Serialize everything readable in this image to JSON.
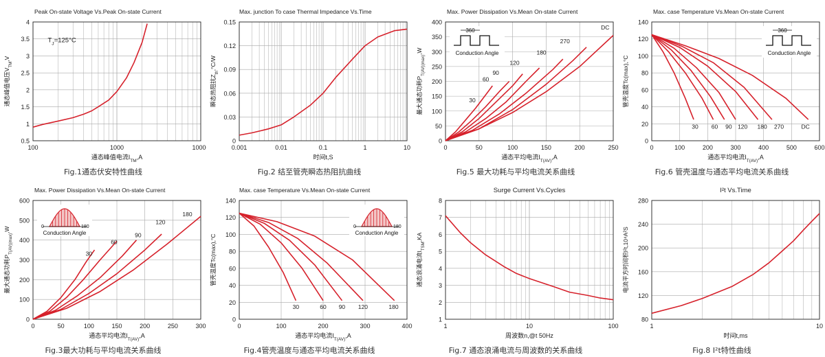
{
  "chart_data": [
    {
      "type": "line",
      "title": "Peak On-state Voltage Vs.Peak On-state Current",
      "xlabel": "通态峰值电流I_TM,A",
      "ylabel": "通态峰值电压V_TM,V",
      "caption": "Fig.1通态伏安特性曲线",
      "xscale": "log",
      "xlim": [
        100,
        10000
      ],
      "ylim": [
        0.5,
        4
      ],
      "xticks": [
        100,
        1000,
        10000
      ],
      "xtick_labels": [
        "100",
        "1000",
        "10000"
      ],
      "yticks": [
        0.5,
        1,
        1.5,
        2,
        2.5,
        3,
        3.5,
        4
      ],
      "ytick_labels": [
        "0.5",
        "1",
        "1.5",
        "2",
        "2.5",
        "3",
        "3.5",
        "4"
      ],
      "annotations": [
        {
          "text": "T_J=125°C",
          "x": 150,
          "y": 3.4
        }
      ],
      "series": [
        {
          "x": [
            100,
            130,
            200,
            300,
            400,
            500,
            600,
            800,
            1000,
            1300,
            1600,
            2000,
            2300
          ],
          "y": [
            0.9,
            0.98,
            1.08,
            1.18,
            1.28,
            1.38,
            1.5,
            1.7,
            1.95,
            2.35,
            2.8,
            3.4,
            3.95
          ]
        }
      ]
    },
    {
      "type": "line",
      "title": "Max. junction To case Thermal Impedance Vs.Time",
      "xlabel": "时间t,S",
      "ylabel": "瞬态热阻抗Z_th,°C/W",
      "caption": "Fig.2 结至管壳瞬态热阻抗曲线",
      "xscale": "log",
      "xlim": [
        0.001,
        10
      ],
      "ylim": [
        0,
        0.15
      ],
      "xticks": [
        0.001,
        0.01,
        0.1,
        1,
        10
      ],
      "xtick_labels": [
        "0.001",
        "0.01",
        "0.1",
        "1",
        "10"
      ],
      "yticks": [
        0,
        0.03,
        0.06,
        0.09,
        0.12,
        0.15
      ],
      "ytick_labels": [
        "0",
        "0.03",
        "0.06",
        "0.09",
        "0.12",
        "0.15"
      ],
      "series": [
        {
          "x": [
            0.001,
            0.002,
            0.005,
            0.01,
            0.02,
            0.05,
            0.1,
            0.2,
            0.5,
            1,
            2,
            5,
            10
          ],
          "y": [
            0.007,
            0.01,
            0.015,
            0.02,
            0.03,
            0.045,
            0.06,
            0.08,
            0.103,
            0.12,
            0.131,
            0.139,
            0.141
          ]
        }
      ]
    },
    {
      "type": "line",
      "title": "Max. Power Dissipation Vs.Mean On-state Current",
      "xlabel": "通态平均电流I_T(AV),A",
      "ylabel": "最大通态功耗P_T(AV)(max),W",
      "caption": "Fig.5 最大功耗与平均电流关系曲线",
      "xlim": [
        0,
        250
      ],
      "ylim": [
        0,
        400
      ],
      "xticks": [
        0,
        50,
        100,
        150,
        200,
        250
      ],
      "xtick_labels": [
        "0",
        "50",
        "100",
        "150",
        "200",
        "250"
      ],
      "yticks": [
        0,
        50,
        100,
        150,
        200,
        250,
        300,
        350,
        400
      ],
      "ytick_labels": [
        "0",
        "50",
        "100",
        "150",
        "200",
        "250",
        "300",
        "350",
        "400"
      ],
      "inset": {
        "kind": "square",
        "label": "360",
        "sub": "Conduction Angle",
        "corner": "top-left"
      },
      "series": [
        {
          "name": "30",
          "x": [
            0,
            15,
            30,
            45,
            60,
            70
          ],
          "y": [
            0,
            30,
            70,
            110,
            155,
            185
          ],
          "label_at": [
            40,
            130
          ]
        },
        {
          "name": "60",
          "x": [
            0,
            20,
            40,
            60,
            80,
            95
          ],
          "y": [
            0,
            30,
            70,
            115,
            165,
            200
          ],
          "label_at": [
            60,
            200
          ]
        },
        {
          "name": "90",
          "x": [
            0,
            25,
            50,
            75,
            100,
            115
          ],
          "y": [
            0,
            30,
            75,
            130,
            185,
            225
          ],
          "label_at": [
            75,
            222
          ]
        },
        {
          "name": "120",
          "x": [
            0,
            30,
            60,
            90,
            120,
            140
          ],
          "y": [
            0,
            30,
            75,
            130,
            200,
            245
          ],
          "label_at": [
            103,
            255
          ]
        },
        {
          "name": "180",
          "x": [
            0,
            40,
            80,
            120,
            160,
            175
          ],
          "y": [
            0,
            35,
            90,
            160,
            240,
            275
          ],
          "label_at": [
            143,
            290
          ]
        },
        {
          "name": "270",
          "x": [
            0,
            50,
            100,
            150,
            190,
            210
          ],
          "y": [
            0,
            40,
            105,
            190,
            270,
            315
          ],
          "label_at": [
            178,
            328
          ]
        },
        {
          "name": "DC",
          "x": [
            0,
            50,
            100,
            150,
            200,
            250
          ],
          "y": [
            0,
            40,
            95,
            165,
            250,
            355
          ],
          "label_at": [
            238,
            375
          ]
        }
      ]
    },
    {
      "type": "line",
      "title": "Max. case Temperature Vs.Mean On-state Current",
      "xlabel": "通态平均电流I_T(AV),A",
      "ylabel": "管壳温度Tc(max),°C",
      "caption": "Fig.6 管壳温度与通态平均电流关系曲线",
      "xlim": [
        0,
        600
      ],
      "ylim": [
        0,
        140
      ],
      "xticks": [
        0,
        100,
        200,
        300,
        400,
        500,
        600
      ],
      "xtick_labels": [
        "0",
        "100",
        "200",
        "300",
        "400",
        "500",
        "600"
      ],
      "yticks": [
        0,
        20,
        40,
        60,
        80,
        100,
        120,
        140
      ],
      "ytick_labels": [
        "0",
        "20",
        "40",
        "60",
        "80",
        "100",
        "120",
        "140"
      ],
      "inset": {
        "kind": "square",
        "label": "360",
        "sub": "Conduction Angle",
        "corner": "top-right"
      },
      "series": [
        {
          "name": "30",
          "x": [
            0,
            40,
            80,
            120,
            150
          ],
          "y": [
            125,
            105,
            80,
            50,
            25
          ],
          "label_at": [
            155,
            14
          ]
        },
        {
          "name": "60",
          "x": [
            0,
            60,
            120,
            180,
            220
          ],
          "y": [
            125,
            105,
            80,
            50,
            25
          ],
          "label_at": [
            225,
            14
          ]
        },
        {
          "name": "90",
          "x": [
            0,
            70,
            140,
            210,
            260
          ],
          "y": [
            125,
            107,
            83,
            52,
            25
          ],
          "label_at": [
            275,
            14
          ]
        },
        {
          "name": "120",
          "x": [
            0,
            80,
            160,
            240,
            300
          ],
          "y": [
            125,
            109,
            86,
            57,
            25
          ],
          "label_at": [
            325,
            14
          ]
        },
        {
          "name": "180",
          "x": [
            0,
            100,
            200,
            300,
            380
          ],
          "y": [
            125,
            110,
            88,
            58,
            25
          ],
          "label_at": [
            395,
            14
          ]
        },
        {
          "name": "270",
          "x": [
            0,
            110,
            220,
            330,
            430
          ],
          "y": [
            125,
            111,
            92,
            63,
            25
          ],
          "label_at": [
            455,
            14
          ]
        },
        {
          "name": "DC",
          "x": [
            0,
            120,
            240,
            360,
            480,
            560
          ],
          "y": [
            125,
            112,
            97,
            77,
            50,
            25
          ],
          "label_at": [
            550,
            14
          ]
        }
      ]
    },
    {
      "type": "line",
      "title": "Max. Power Dissipation Vs.Mean On-state Current",
      "xlabel": "通态平均电流I_T(AV),A",
      "ylabel": "最大通态功耗P_T(AV)(max),W",
      "caption": "Fig.3最大功耗与平均电流关系曲线",
      "xlim": [
        0,
        300
      ],
      "ylim": [
        0,
        600
      ],
      "xticks": [
        0,
        50,
        100,
        150,
        200,
        250,
        300
      ],
      "xtick_labels": [
        "0",
        "50",
        "100",
        "150",
        "200",
        "250",
        "300"
      ],
      "yticks": [
        0,
        100,
        200,
        300,
        400,
        500,
        600
      ],
      "ytick_labels": [
        "0",
        "100",
        "200",
        "300",
        "400",
        "500",
        "600"
      ],
      "inset": {
        "kind": "sine",
        "left": "0",
        "right": "180",
        "sub": "Conduction Angle",
        "corner": "top-left"
      },
      "series": [
        {
          "name": "30",
          "x": [
            0,
            25,
            50,
            75,
            95,
            110
          ],
          "y": [
            0,
            40,
            110,
            200,
            290,
            350
          ],
          "label_at": [
            100,
            320
          ]
        },
        {
          "name": "60",
          "x": [
            0,
            30,
            60,
            90,
            120,
            150
          ],
          "y": [
            0,
            40,
            110,
            200,
            300,
            395
          ],
          "label_at": [
            145,
            380
          ]
        },
        {
          "name": "90",
          "x": [
            0,
            40,
            80,
            120,
            160,
            185
          ],
          "y": [
            0,
            45,
            120,
            210,
            320,
            400
          ],
          "label_at": [
            188,
            415
          ]
        },
        {
          "name": "120",
          "x": [
            0,
            50,
            100,
            150,
            200,
            230
          ],
          "y": [
            0,
            50,
            130,
            230,
            350,
            430
          ],
          "label_at": [
            228,
            480
          ]
        },
        {
          "name": "180",
          "x": [
            0,
            60,
            120,
            180,
            240,
            300
          ],
          "y": [
            0,
            55,
            140,
            250,
            380,
            520
          ],
          "label_at": [
            276,
            520
          ]
        }
      ]
    },
    {
      "type": "line",
      "title": "Max. case Temperature Vs.Mean On-state Current",
      "xlabel": "通态平均电流I_T(AV),A",
      "ylabel": "管壳温度Tc(max),°C",
      "caption": "Fig.4管壳温度与通态平均电流关系曲线",
      "xlim": [
        0,
        400
      ],
      "ylim": [
        0,
        140
      ],
      "xticks": [
        0,
        100,
        200,
        300,
        400
      ],
      "xtick_labels": [
        "0",
        "100",
        "200",
        "300",
        "400"
      ],
      "yticks": [
        0,
        20,
        40,
        60,
        80,
        100,
        120,
        140
      ],
      "ytick_labels": [
        "0",
        "20",
        "40",
        "60",
        "80",
        "100",
        "120",
        "140"
      ],
      "inset": {
        "kind": "sine",
        "left": "0",
        "right": "180",
        "sub": "Conduction Angle",
        "corner": "top-right"
      },
      "series": [
        {
          "name": "30",
          "x": [
            0,
            35,
            70,
            105,
            135
          ],
          "y": [
            125,
            110,
            85,
            55,
            22
          ],
          "label_at": [
            135,
            12
          ]
        },
        {
          "name": "60",
          "x": [
            0,
            50,
            100,
            150,
            200
          ],
          "y": [
            125,
            112,
            90,
            60,
            22
          ],
          "label_at": [
            200,
            12
          ]
        },
        {
          "name": "90",
          "x": [
            0,
            60,
            120,
            180,
            245
          ],
          "y": [
            125,
            113,
            93,
            64,
            22
          ],
          "label_at": [
            245,
            12
          ]
        },
        {
          "name": "120",
          "x": [
            0,
            70,
            140,
            210,
            295
          ],
          "y": [
            125,
            114,
            95,
            66,
            22
          ],
          "label_at": [
            295,
            12
          ]
        },
        {
          "name": "180",
          "x": [
            0,
            90,
            180,
            270,
            370
          ],
          "y": [
            125,
            115,
            98,
            70,
            22
          ],
          "label_at": [
            368,
            12
          ]
        }
      ]
    },
    {
      "type": "line",
      "title": "Surge Current Vs.Cycles",
      "xlabel": "周波数n,@t 50Hz",
      "ylabel": "通态浪涌电流I_TSM,KA",
      "caption": "Fig.7 通态浪涌电流与周波数的关系曲线",
      "xscale": "log",
      "xlim": [
        1,
        100
      ],
      "ylim": [
        1,
        8
      ],
      "xticks": [
        1,
        10,
        100
      ],
      "xtick_labels": [
        "1",
        "10",
        "100"
      ],
      "yticks": [
        1,
        2,
        3,
        4,
        5,
        6,
        7,
        8
      ],
      "ytick_labels": [
        "1",
        "2",
        "3",
        "4",
        "5",
        "6",
        "7",
        "8"
      ],
      "series": [
        {
          "x": [
            1,
            1.5,
            2,
            3,
            5,
            7,
            10,
            20,
            30,
            50,
            70,
            100
          ],
          "y": [
            7.1,
            6.1,
            5.5,
            4.8,
            4.1,
            3.7,
            3.4,
            2.9,
            2.6,
            2.4,
            2.25,
            2.15
          ]
        }
      ]
    },
    {
      "type": "line",
      "title": "I²t Vs.Time",
      "xlabel": "时间t,ms",
      "ylabel": "电流平方时间积I²t,10⁴A²S",
      "caption": "Fig.8 I²t特性曲线",
      "xscale": "log",
      "xlim": [
        1,
        10
      ],
      "ylim": [
        80,
        280
      ],
      "xticks": [
        1,
        10
      ],
      "xtick_labels": [
        "1",
        "10"
      ],
      "yticks": [
        80,
        120,
        160,
        200,
        240,
        280
      ],
      "ytick_labels": [
        "80",
        "120",
        "160",
        "200",
        "240",
        "280"
      ],
      "series": [
        {
          "x": [
            1,
            1.5,
            2,
            3,
            4,
            5,
            6,
            7,
            8,
            9,
            10
          ],
          "y": [
            90,
            103,
            115,
            135,
            155,
            175,
            195,
            212,
            230,
            245,
            258
          ]
        }
      ]
    }
  ]
}
